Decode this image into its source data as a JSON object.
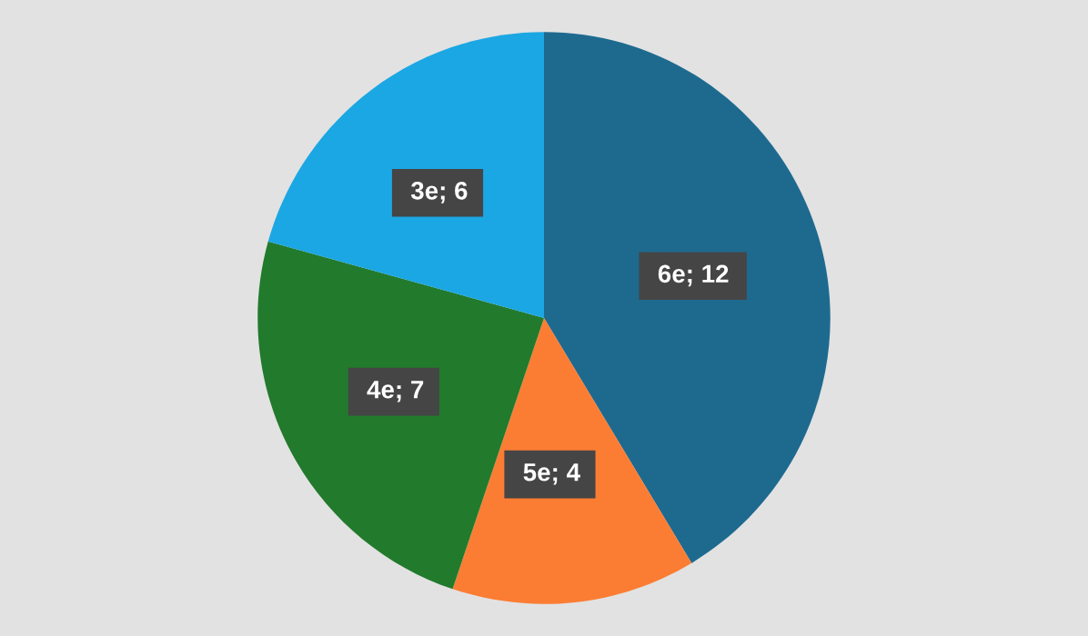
{
  "chart_data": {
    "type": "pie",
    "categories": [
      "6e",
      "5e",
      "4e",
      "3e"
    ],
    "values": [
      12,
      4,
      7,
      6
    ],
    "colors": [
      "#1e6a8f",
      "#fb7d33",
      "#227a2c",
      "#1ba7e3"
    ],
    "value_labels": [
      "; 12",
      "; 4",
      "; 7",
      "; 6"
    ],
    "legend": false
  }
}
